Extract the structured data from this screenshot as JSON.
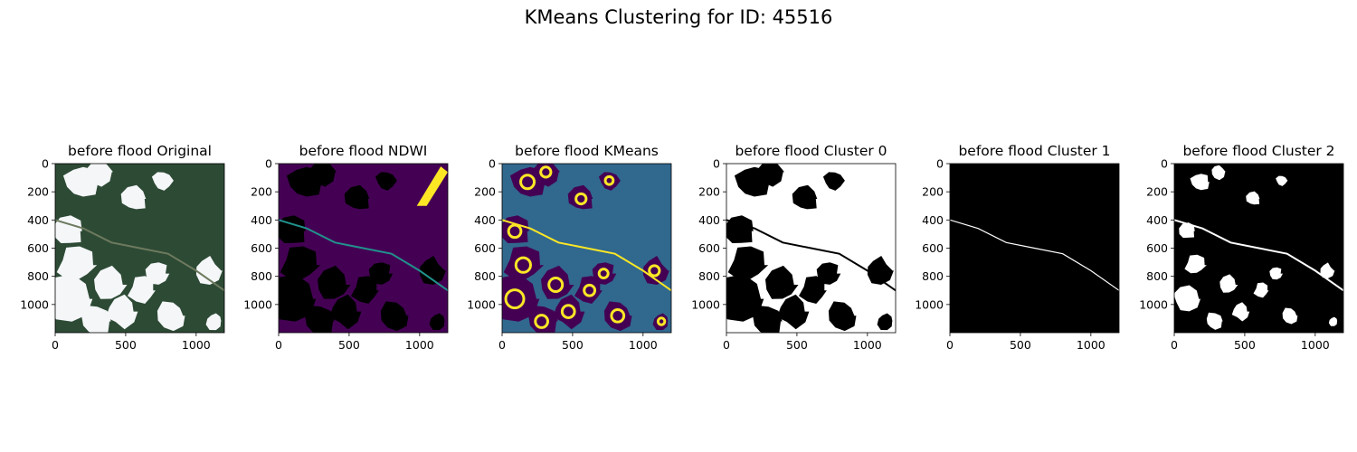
{
  "figure": {
    "title": "KMeans Clustering for ID: 45516"
  },
  "chart_data": {
    "type": "image_grid",
    "panels": [
      {
        "title": "before flood Original",
        "kind": "satellite-rgb",
        "xticks": [
          0,
          500,
          1000
        ],
        "yticks": [
          0,
          200,
          400,
          600,
          800,
          1000
        ],
        "xlim": [
          0,
          1200
        ],
        "ylim": [
          1200,
          0
        ]
      },
      {
        "title": "before flood NDWI",
        "kind": "ndwi-viridis",
        "xticks": [
          0,
          500,
          1000
        ],
        "yticks": [
          0,
          200,
          400,
          600,
          800,
          1000
        ],
        "xlim": [
          0,
          1200
        ],
        "ylim": [
          1200,
          0
        ]
      },
      {
        "title": "before flood KMeans",
        "kind": "kmeans-viridis",
        "xticks": [
          0,
          500,
          1000
        ],
        "yticks": [
          0,
          200,
          400,
          600,
          800,
          1000
        ],
        "xlim": [
          0,
          1200
        ],
        "ylim": [
          1200,
          0
        ]
      },
      {
        "title": "before flood Cluster 0",
        "kind": "mask-large",
        "xticks": [
          0,
          500,
          1000
        ],
        "yticks": [
          0,
          200,
          400,
          600,
          800,
          1000
        ],
        "xlim": [
          0,
          1200
        ],
        "ylim": [
          1200,
          0
        ]
      },
      {
        "title": "before flood Cluster 1",
        "kind": "mask-river",
        "xticks": [
          0,
          500,
          1000
        ],
        "yticks": [
          0,
          200,
          400,
          600,
          800,
          1000
        ],
        "xlim": [
          0,
          1200
        ],
        "ylim": [
          1200,
          0
        ]
      },
      {
        "title": "before flood Cluster 2",
        "kind": "mask-edges",
        "xticks": [
          0,
          500,
          1000
        ],
        "yticks": [
          0,
          200,
          400,
          600,
          800,
          1000
        ],
        "xlim": [
          0,
          1200
        ],
        "ylim": [
          1200,
          0
        ]
      }
    ]
  },
  "colors": {
    "viridis_purple": "#440154",
    "viridis_blue": "#31688e",
    "viridis_teal": "#21918c",
    "viridis_yellow": "#fde725",
    "forest": "#2d4a35",
    "cloud": "#f4f6f8",
    "mask_on": "#ffffff",
    "mask_off": "#000000"
  }
}
